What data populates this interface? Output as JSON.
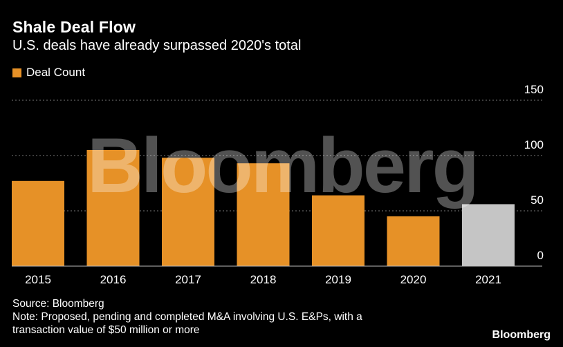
{
  "header": {
    "title": "Shale Deal Flow",
    "subtitle": "U.S. deals have already surpassed 2020's total"
  },
  "legend": {
    "label": "Deal Count"
  },
  "watermark": "Bloomberg",
  "footer": {
    "source": "Source: Bloomberg",
    "note_line1": "Note: Proposed, pending and completed M&A involving U.S. E&Ps, with a",
    "note_line2": "transaction value of $50 million or more",
    "brand": "Bloomberg"
  },
  "colors": {
    "primary_bar": "#e69127",
    "highlight_bar": "#c5c5c5",
    "background": "#000000"
  },
  "chart_data": {
    "type": "bar",
    "categories": [
      "2015",
      "2016",
      "2017",
      "2018",
      "2019",
      "2020",
      "2021"
    ],
    "series": [
      {
        "name": "Deal Count",
        "values": [
          77,
          105,
          98,
          93,
          64,
          45,
          56
        ]
      }
    ],
    "highlight_index": 6,
    "ylim": [
      0,
      150
    ],
    "yticks": [
      "0",
      "50",
      "100",
      "150"
    ],
    "grid": true,
    "y_axis_position": "right",
    "legend_position": "top-left"
  }
}
